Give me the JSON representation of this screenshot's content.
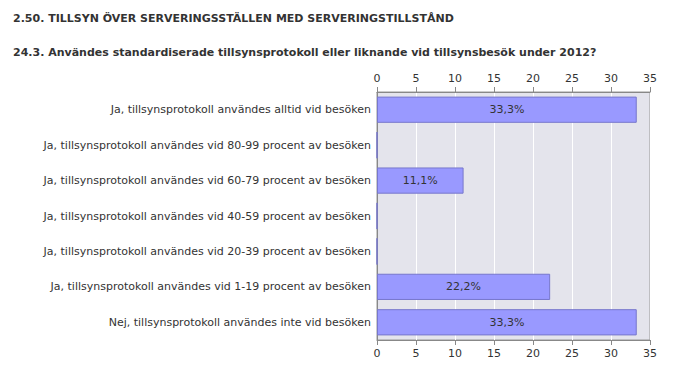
{
  "chart_data": {
    "type": "bar",
    "orientation": "horizontal",
    "title": "2.50. TILLSYN ÖVER SERVERINGSSTÄLLEN MED SERVERINGSTILLSTÅND",
    "subtitle": "24.3. Användes standardiserade tillsynsprotokoll eller liknande vid tillsynsbesök under 2012?",
    "categories": [
      "Ja, tillsynsprotokoll användes alltid vid besöken",
      "Ja, tillsynsprotokoll användes vid 80-99 procent av besöken",
      "Ja, tillsynsprotokoll användes vid 60-79 procent av besöken",
      "Ja, tillsynsprotokoll användes vid 40-59 procent av besöken",
      "Ja, tillsynsprotokoll användes vid 20-39 procent av besöken",
      "Ja, tillsynsprotokoll användes vid 1-19 procent av besöken",
      "Nej, tillsynsprotokoll användes inte vid besöken"
    ],
    "values": [
      33.3,
      0,
      11.1,
      0,
      0,
      22.2,
      33.3
    ],
    "value_labels": [
      "33,3%",
      null,
      "11,1%",
      null,
      null,
      "22,2%",
      "33,3%"
    ],
    "data_labels": true,
    "color": "#9999ff",
    "xlim": [
      0,
      35
    ],
    "xticks": [
      0,
      5,
      10,
      15,
      20,
      25,
      30,
      35
    ],
    "grid": true
  }
}
